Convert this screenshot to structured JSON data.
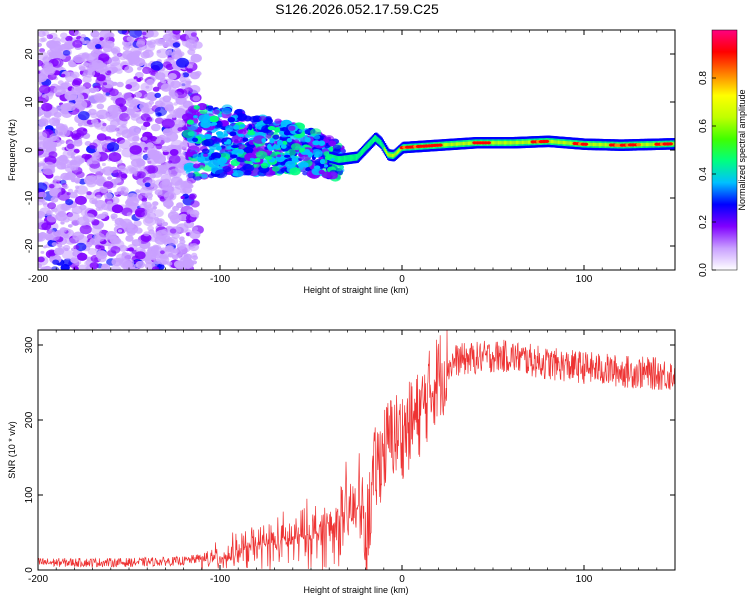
{
  "chart_data": [
    {
      "type": "heatmap",
      "title": "S126.2026.052.17.59.C25",
      "xlabel": "Height of straight line (km)",
      "ylabel": "Frequency (Hz)",
      "xlim": [
        -200,
        150
      ],
      "ylim": [
        -25,
        25
      ],
      "xticks": [
        -200,
        -100,
        0,
        100
      ],
      "xtick_labels": [
        "-200",
        "-100",
        "0",
        "100"
      ],
      "yticks": [
        -20,
        -10,
        0,
        10,
        20
      ],
      "ytick_labels": [
        "-20",
        "-10",
        "0",
        "10",
        "20"
      ],
      "ridge": {
        "x": [
          -115,
          -100,
          -80,
          -60,
          -45,
          -35,
          -25,
          -15,
          -12,
          -8,
          -5,
          0,
          20,
          40,
          60,
          80,
          100,
          120,
          150
        ],
        "y": [
          1.5,
          2.0,
          1.0,
          0.5,
          -1.0,
          -2.0,
          -1.5,
          2.5,
          1.5,
          -1.0,
          -1.2,
          0.5,
          1.0,
          1.5,
          1.5,
          1.8,
          1.2,
          1.0,
          1.3
        ]
      },
      "colorbar": {
        "label": "Normalized spectral amplitude",
        "range": [
          0,
          1
        ],
        "ticks": [
          0.0,
          0.2,
          0.4,
          0.6,
          0.8
        ],
        "tick_labels": [
          "0.0",
          "0.2",
          "0.4",
          "0.6",
          "0.8"
        ],
        "colors": [
          "#ffffff",
          "#c9a0ff",
          "#8000ff",
          "#0000ff",
          "#00c0ff",
          "#00ff80",
          "#40ff00",
          "#c0ff00",
          "#ffff00",
          "#ff8000",
          "#ff0000",
          "#ff0080"
        ]
      }
    },
    {
      "type": "line",
      "xlabel": "Height of straight line (km)",
      "ylabel": "SNR (10 * v/v)",
      "xlim": [
        -200,
        150
      ],
      "ylim": [
        0,
        320
      ],
      "xticks": [
        -200,
        -100,
        0,
        100
      ],
      "xtick_labels": [
        "-200",
        "-100",
        "0",
        "100"
      ],
      "yticks": [
        0,
        100,
        200,
        300
      ],
      "ytick_labels": [
        "0",
        "100",
        "200",
        "300"
      ],
      "color": "#ee3333",
      "trend": {
        "x": [
          -200,
          -150,
          -120,
          -100,
          -80,
          -60,
          -40,
          -30,
          -22,
          -20,
          -15,
          -10,
          -5,
          0,
          10,
          20,
          30,
          50,
          60,
          80,
          100,
          120,
          150
        ],
        "y": [
          10,
          10,
          12,
          20,
          40,
          50,
          70,
          90,
          110,
          40,
          130,
          160,
          180,
          180,
          210,
          260,
          280,
          285,
          285,
          275,
          270,
          265,
          260
        ]
      }
    }
  ]
}
